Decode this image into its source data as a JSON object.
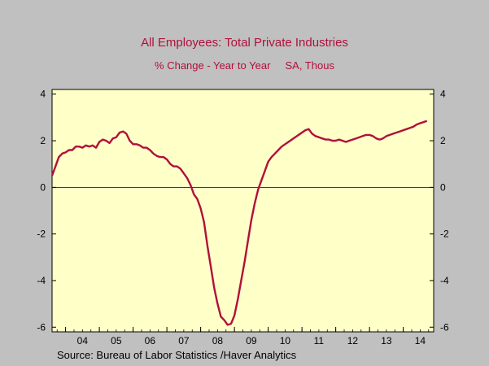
{
  "chart_data": {
    "type": "line",
    "title": "All Employees: Total Private Industries",
    "subtitle": "% Change - Year to Year     SA, Thous",
    "source": "Source:  Bureau of Labor Statistics /Haver Analytics",
    "x_axis": {
      "range": [
        2003.6,
        2014.9
      ],
      "tick_labels": [
        "04",
        "05",
        "06",
        "07",
        "08",
        "09",
        "10",
        "11",
        "12",
        "13",
        "14"
      ]
    },
    "y_axis": {
      "range": [
        -6.2,
        4.2
      ],
      "ticks": [
        4,
        2,
        0,
        -2,
        -4,
        -6
      ],
      "tick_labels": [
        "4",
        "2",
        "0",
        "-2",
        "-4",
        "-6"
      ],
      "mirrored_right": true
    },
    "zero_line": true,
    "colors": {
      "line": "#b0103a",
      "plot_background": "#ffffc8",
      "page_background": "#c0c0c0",
      "title": "#b0103a"
    },
    "series": [
      {
        "x": [
          2003.6,
          2003.7,
          2003.8,
          2003.9,
          2004.0,
          2004.1,
          2004.2,
          2004.3,
          2004.4,
          2004.5,
          2004.6,
          2004.7,
          2004.8,
          2004.9,
          2005.0,
          2005.1,
          2005.2,
          2005.3,
          2005.4,
          2005.5,
          2005.6,
          2005.7,
          2005.8,
          2005.9,
          2006.0,
          2006.1,
          2006.2,
          2006.3,
          2006.4,
          2006.5,
          2006.6,
          2006.7,
          2006.8,
          2006.9,
          2007.0,
          2007.1,
          2007.2,
          2007.3,
          2007.4,
          2007.5,
          2007.6,
          2007.7,
          2007.8,
          2007.9,
          2008.0,
          2008.1,
          2008.2,
          2008.3,
          2008.4,
          2008.5,
          2008.6,
          2008.7,
          2008.8,
          2008.9,
          2009.0,
          2009.1,
          2009.2,
          2009.3,
          2009.4,
          2009.5,
          2009.6,
          2009.7,
          2009.8,
          2009.9,
          2010.0,
          2010.1,
          2010.2,
          2010.3,
          2010.4,
          2010.5,
          2010.6,
          2010.7,
          2010.8,
          2010.9,
          2011.0,
          2011.1,
          2011.2,
          2011.3,
          2011.4,
          2011.5,
          2011.6,
          2011.7,
          2011.8,
          2011.9,
          2012.0,
          2012.1,
          2012.2,
          2012.3,
          2012.4,
          2012.5,
          2012.6,
          2012.7,
          2012.8,
          2012.9,
          2013.0,
          2013.1,
          2013.2,
          2013.3,
          2013.4,
          2013.5,
          2013.6,
          2013.7,
          2013.8,
          2013.9,
          2014.0,
          2014.1,
          2014.2,
          2014.3,
          2014.4,
          2014.5,
          2014.6,
          2014.7
        ],
        "values": [
          0.5,
          0.9,
          1.3,
          1.45,
          1.5,
          1.6,
          1.6,
          1.75,
          1.75,
          1.7,
          1.8,
          1.75,
          1.8,
          1.7,
          1.95,
          2.05,
          2.0,
          1.9,
          2.1,
          2.15,
          2.35,
          2.4,
          2.3,
          2.0,
          1.85,
          1.85,
          1.8,
          1.7,
          1.7,
          1.6,
          1.45,
          1.35,
          1.3,
          1.3,
          1.2,
          1.0,
          0.9,
          0.9,
          0.8,
          0.6,
          0.4,
          0.1,
          -0.3,
          -0.5,
          -0.9,
          -1.5,
          -2.5,
          -3.4,
          -4.3,
          -5.0,
          -5.55,
          -5.7,
          -5.9,
          -5.85,
          -5.5,
          -4.8,
          -4.0,
          -3.2,
          -2.3,
          -1.4,
          -0.7,
          -0.1,
          0.3,
          0.7,
          1.1,
          1.3,
          1.45,
          1.6,
          1.75,
          1.85,
          1.95,
          2.05,
          2.15,
          2.25,
          2.35,
          2.45,
          2.5,
          2.3,
          2.2,
          2.15,
          2.1,
          2.05,
          2.05,
          2.0,
          2.0,
          2.05,
          2.0,
          1.95,
          2.0,
          2.05,
          2.1,
          2.15,
          2.2,
          2.25,
          2.25,
          2.2,
          2.1,
          2.05,
          2.1,
          2.2,
          2.25,
          2.3,
          2.35,
          2.4,
          2.45,
          2.5,
          2.55,
          2.6,
          2.7,
          2.75,
          2.8,
          2.85
        ]
      }
    ]
  }
}
